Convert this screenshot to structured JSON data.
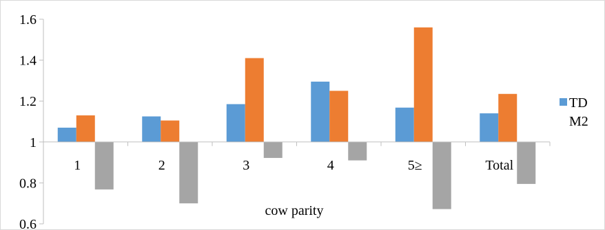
{
  "chart_data": {
    "type": "bar",
    "categories": [
      "1",
      "2",
      "3",
      "4",
      "5≥",
      "Total"
    ],
    "series": [
      {
        "name": "TD",
        "color": "#5B9BD5",
        "values": [
          1.07,
          1.125,
          1.185,
          1.295,
          1.168,
          1.14
        ]
      },
      {
        "name": "M2",
        "color": "#ED7D31",
        "values": [
          1.13,
          1.105,
          1.41,
          1.25,
          1.56,
          1.235
        ]
      },
      {
        "name": "",
        "color": "#A5A5A5",
        "values": [
          0.768,
          0.7,
          0.922,
          0.91,
          0.672,
          0.795
        ]
      }
    ],
    "baseline": 1,
    "ylim": [
      0.6,
      1.6
    ],
    "yticks": [
      "0.6",
      "0.8",
      "1",
      "1.2",
      "1.4",
      "1.6"
    ],
    "xlabel": "cow parity",
    "ylabel": "",
    "title": "",
    "legend_position": "right",
    "grid": false
  }
}
